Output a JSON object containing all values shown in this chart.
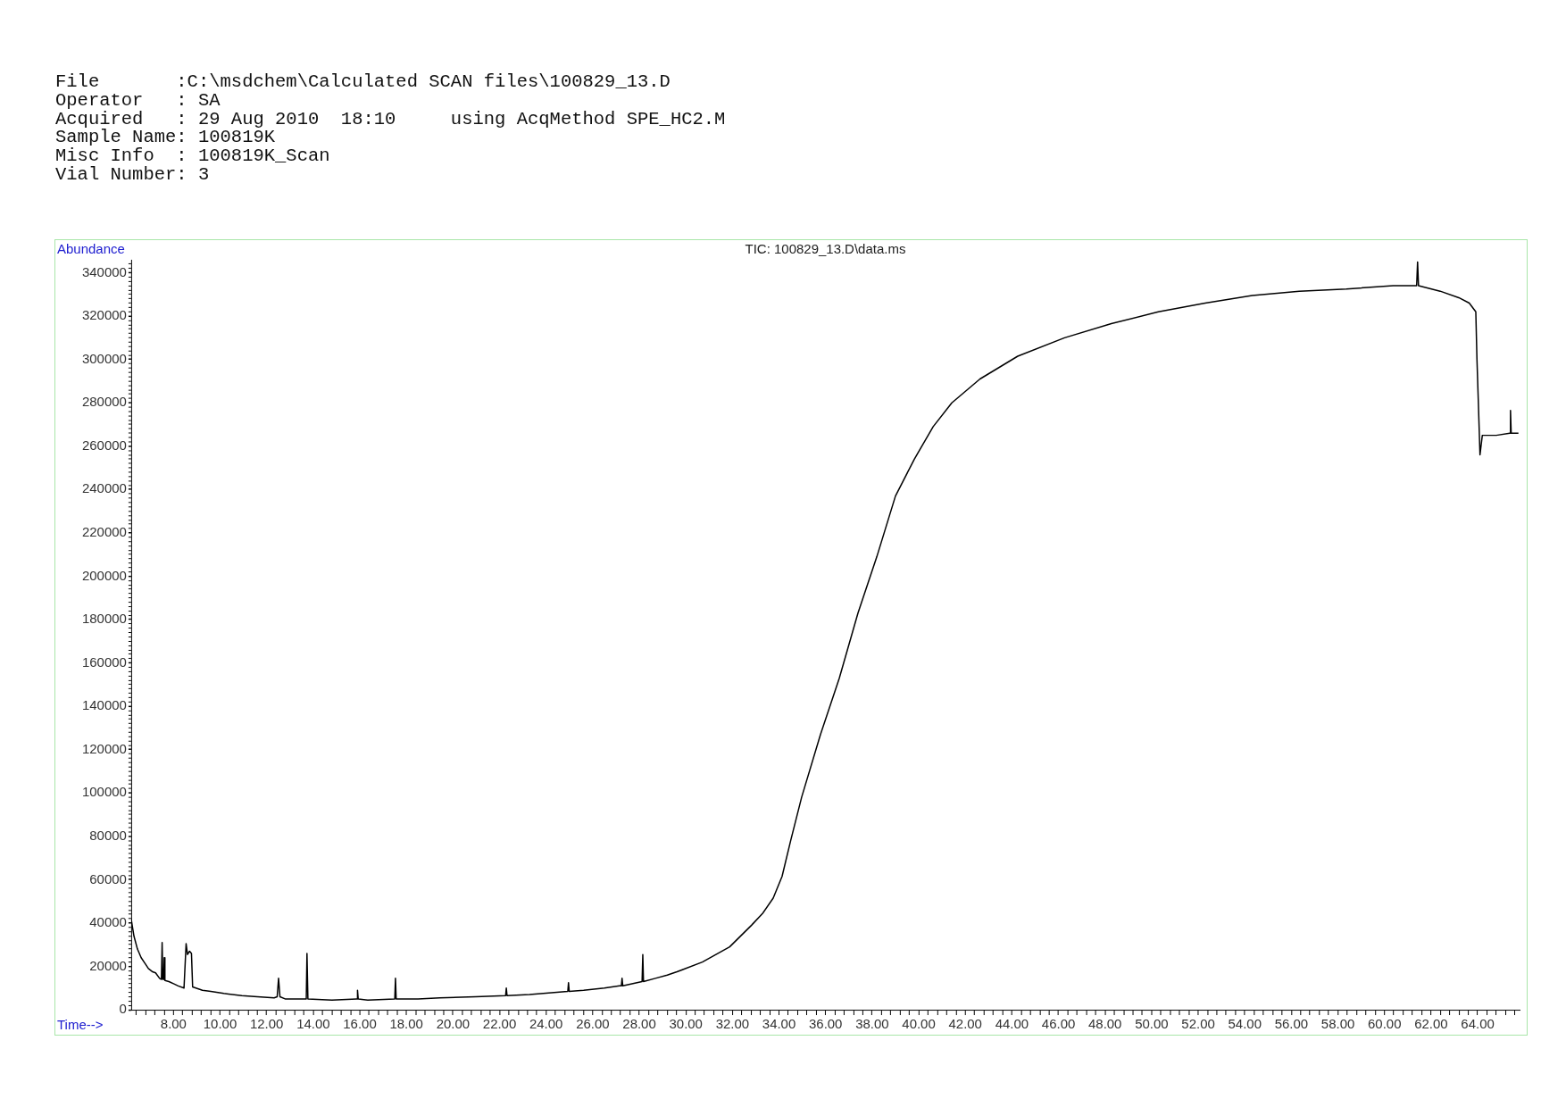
{
  "chart_data": {
    "type": "line",
    "title": "TIC: 100829_13.D\\data.ms",
    "xlabel": "Time-->",
    "ylabel": "Abundance",
    "annotations": [
      "File       :C:\\msdchem\\Calculated SCAN files\\100829_13.D",
      "Operator   : SA",
      "Acquired   : 29 Aug 2010  18:10     using AcqMethod SPE_HC2.M",
      "Sample Name: 100819K",
      "Misc Info  : 100819K_Scan",
      "Vial Number: 3"
    ],
    "x": [
      6.18,
      6.3,
      6.45,
      6.61,
      6.8,
      6.92,
      7.1,
      7.23,
      7.4,
      7.48,
      7.51,
      7.54,
      7.58,
      7.6,
      7.63,
      7.8,
      8.0,
      8.2,
      8.45,
      8.54,
      8.6,
      8.69,
      8.77,
      8.82,
      9.24,
      9.6,
      10.16,
      10.93,
      11.6,
      12.32,
      12.45,
      12.51,
      12.57,
      12.79,
      13.7,
      13.73,
      13.77,
      14.8,
      15.87,
      15.9,
      15.93,
      16.34,
      17.5,
      17.53,
      17.56,
      18.5,
      19.43,
      20.97,
      22.26,
      22.29,
      22.32,
      23.29,
      24.93,
      24.96,
      24.99,
      25.61,
      26.5,
      27.15,
      27.23,
      27.26,
      27.29,
      28.12,
      28.15,
      28.18,
      28.69,
      29.2,
      29.62,
      30.71,
      31.88,
      32.82,
      33.3,
      33.75,
      34.13,
      34.5,
      34.97,
      35.78,
      36.59,
      37.39,
      38.2,
      39.0,
      39.81,
      40.62,
      41.42,
      42.63,
      44.25,
      46.26,
      48.27,
      50.29,
      52.3,
      54.32,
      56.34,
      58.36,
      60.37,
      61.38,
      61.42,
      61.46,
      62.39,
      63.19,
      63.64,
      63.92,
      63.97,
      64.03,
      64.1,
      64.2,
      64.8,
      65.38,
      65.41,
      65.44,
      65.75
    ],
    "values": [
      42000,
      34000,
      28000,
      24000,
      21000,
      19000,
      17500,
      17000,
      14500,
      14000,
      31000,
      14000,
      14000,
      24000,
      13500,
      13000,
      12000,
      11000,
      10000,
      30500,
      25500,
      27000,
      26000,
      10500,
      9000,
      8500,
      7500,
      6500,
      6000,
      5500,
      6000,
      14500,
      6000,
      5000,
      5000,
      26000,
      5000,
      4500,
      5000,
      9000,
      5000,
      4500,
      5000,
      14500,
      5000,
      5000,
      5500,
      6000,
      6500,
      10000,
      6500,
      7000,
      8500,
      12500,
      8500,
      9000,
      10000,
      11000,
      11000,
      14500,
      11000,
      13000,
      25500,
      13000,
      14500,
      16000,
      17500,
      22000,
      29000,
      39000,
      44500,
      51500,
      61500,
      78000,
      98000,
      127000,
      153000,
      183000,
      209000,
      237000,
      254000,
      269000,
      280000,
      291000,
      301500,
      310000,
      316500,
      322000,
      326000,
      329500,
      331500,
      332500,
      334000,
      334000,
      345000,
      334000,
      331500,
      328500,
      326000,
      322000,
      300000,
      280000,
      256000,
      265000,
      265000,
      266000,
      276500,
      266000,
      266000
    ],
    "color": "#000000",
    "marker": "none",
    "legend": false,
    "xlim": [
      6.18,
      65.8
    ],
    "ylim": [
      0,
      346000
    ],
    "xticks": [
      {
        "value": 6.4,
        "label": null
      },
      {
        "value": 6.8,
        "label": null
      },
      {
        "value": 7.2,
        "label": null
      },
      {
        "value": 7.6,
        "label": null
      },
      {
        "value": 8,
        "label": "8.00"
      },
      {
        "value": 8.4,
        "label": null
      },
      {
        "value": 8.8,
        "label": null
      },
      {
        "value": 9.2,
        "label": null
      },
      {
        "value": 9.6,
        "label": null
      },
      {
        "value": 10,
        "label": "10.00"
      },
      {
        "value": 10.4,
        "label": null
      },
      {
        "value": 10.8,
        "label": null
      },
      {
        "value": 11.2,
        "label": null
      },
      {
        "value": 11.6,
        "label": null
      },
      {
        "value": 12,
        "label": "12.00"
      },
      {
        "value": 12.4,
        "label": null
      },
      {
        "value": 12.8,
        "label": null
      },
      {
        "value": 13.2,
        "label": null
      },
      {
        "value": 13.6,
        "label": null
      },
      {
        "value": 14,
        "label": "14.00"
      },
      {
        "value": 14.4,
        "label": null
      },
      {
        "value": 14.8,
        "label": null
      },
      {
        "value": 15.2,
        "label": null
      },
      {
        "value": 15.6,
        "label": null
      },
      {
        "value": 16,
        "label": "16.00"
      },
      {
        "value": 16.4,
        "label": null
      },
      {
        "value": 16.8,
        "label": null
      },
      {
        "value": 17.2,
        "label": null
      },
      {
        "value": 17.6,
        "label": null
      },
      {
        "value": 18,
        "label": "18.00"
      },
      {
        "value": 18.4,
        "label": null
      },
      {
        "value": 18.8,
        "label": null
      },
      {
        "value": 19.2,
        "label": null
      },
      {
        "value": 19.6,
        "label": null
      },
      {
        "value": 20,
        "label": "20.00"
      },
      {
        "value": 20.4,
        "label": null
      },
      {
        "value": 20.8,
        "label": null
      },
      {
        "value": 21.2,
        "label": null
      },
      {
        "value": 21.6,
        "label": null
      },
      {
        "value": 22,
        "label": "22.00"
      },
      {
        "value": 22.4,
        "label": null
      },
      {
        "value": 22.8,
        "label": null
      },
      {
        "value": 23.2,
        "label": null
      },
      {
        "value": 23.6,
        "label": null
      },
      {
        "value": 24,
        "label": "24.00"
      },
      {
        "value": 24.4,
        "label": null
      },
      {
        "value": 24.8,
        "label": null
      },
      {
        "value": 25.2,
        "label": null
      },
      {
        "value": 25.6,
        "label": null
      },
      {
        "value": 26,
        "label": "26.00"
      },
      {
        "value": 26.4,
        "label": null
      },
      {
        "value": 26.8,
        "label": null
      },
      {
        "value": 27.2,
        "label": null
      },
      {
        "value": 27.6,
        "label": null
      },
      {
        "value": 28,
        "label": "28.00"
      },
      {
        "value": 28.4,
        "label": null
      },
      {
        "value": 28.8,
        "label": null
      },
      {
        "value": 29.2,
        "label": null
      },
      {
        "value": 29.6,
        "label": null
      },
      {
        "value": 30,
        "label": "30.00"
      },
      {
        "value": 30.4,
        "label": null
      },
      {
        "value": 30.8,
        "label": null
      },
      {
        "value": 31.2,
        "label": null
      },
      {
        "value": 31.6,
        "label": null
      },
      {
        "value": 32,
        "label": "32.00"
      },
      {
        "value": 32.4,
        "label": null
      },
      {
        "value": 32.8,
        "label": null
      },
      {
        "value": 33.2,
        "label": null
      },
      {
        "value": 33.6,
        "label": null
      },
      {
        "value": 34,
        "label": "34.00"
      },
      {
        "value": 34.4,
        "label": null
      },
      {
        "value": 34.8,
        "label": null
      },
      {
        "value": 35.2,
        "label": null
      },
      {
        "value": 35.6,
        "label": null
      },
      {
        "value": 36,
        "label": "36.00"
      },
      {
        "value": 36.4,
        "label": null
      },
      {
        "value": 36.8,
        "label": null
      },
      {
        "value": 37.2,
        "label": null
      },
      {
        "value": 37.6,
        "label": null
      },
      {
        "value": 38,
        "label": "38.00"
      },
      {
        "value": 38.4,
        "label": null
      },
      {
        "value": 38.8,
        "label": null
      },
      {
        "value": 39.2,
        "label": null
      },
      {
        "value": 39.6,
        "label": null
      },
      {
        "value": 40,
        "label": "40.00"
      },
      {
        "value": 40.4,
        "label": null
      },
      {
        "value": 40.8,
        "label": null
      },
      {
        "value": 41.2,
        "label": null
      },
      {
        "value": 41.6,
        "label": null
      },
      {
        "value": 42,
        "label": "42.00"
      },
      {
        "value": 42.4,
        "label": null
      },
      {
        "value": 42.8,
        "label": null
      },
      {
        "value": 43.2,
        "label": null
      },
      {
        "value": 43.6,
        "label": null
      },
      {
        "value": 44,
        "label": "44.00"
      },
      {
        "value": 44.4,
        "label": null
      },
      {
        "value": 44.8,
        "label": null
      },
      {
        "value": 45.2,
        "label": null
      },
      {
        "value": 45.6,
        "label": null
      },
      {
        "value": 46,
        "label": "46.00"
      },
      {
        "value": 46.4,
        "label": null
      },
      {
        "value": 46.8,
        "label": null
      },
      {
        "value": 47.2,
        "label": null
      },
      {
        "value": 47.6,
        "label": null
      },
      {
        "value": 48,
        "label": "48.00"
      },
      {
        "value": 48.4,
        "label": null
      },
      {
        "value": 48.8,
        "label": null
      },
      {
        "value": 49.2,
        "label": null
      },
      {
        "value": 49.6,
        "label": null
      },
      {
        "value": 50,
        "label": "50.00"
      },
      {
        "value": 50.4,
        "label": null
      },
      {
        "value": 50.8,
        "label": null
      },
      {
        "value": 51.2,
        "label": null
      },
      {
        "value": 51.6,
        "label": null
      },
      {
        "value": 52,
        "label": "52.00"
      },
      {
        "value": 52.4,
        "label": null
      },
      {
        "value": 52.8,
        "label": null
      },
      {
        "value": 53.2,
        "label": null
      },
      {
        "value": 53.6,
        "label": null
      },
      {
        "value": 54,
        "label": "54.00"
      },
      {
        "value": 54.4,
        "label": null
      },
      {
        "value": 54.8,
        "label": null
      },
      {
        "value": 55.2,
        "label": null
      },
      {
        "value": 55.6,
        "label": null
      },
      {
        "value": 56,
        "label": "56.00"
      },
      {
        "value": 56.4,
        "label": null
      },
      {
        "value": 56.8,
        "label": null
      },
      {
        "value": 57.2,
        "label": null
      },
      {
        "value": 57.6,
        "label": null
      },
      {
        "value": 58,
        "label": "58.00"
      },
      {
        "value": 58.4,
        "label": null
      },
      {
        "value": 58.8,
        "label": null
      },
      {
        "value": 59.2,
        "label": null
      },
      {
        "value": 59.6,
        "label": null
      },
      {
        "value": 60,
        "label": "60.00"
      },
      {
        "value": 60.4,
        "label": null
      },
      {
        "value": 60.8,
        "label": null
      },
      {
        "value": 61.2,
        "label": null
      },
      {
        "value": 61.6,
        "label": null
      },
      {
        "value": 62,
        "label": "62.00"
      },
      {
        "value": 62.4,
        "label": null
      },
      {
        "value": 62.8,
        "label": null
      },
      {
        "value": 63.2,
        "label": null
      },
      {
        "value": 63.6,
        "label": null
      },
      {
        "value": 64,
        "label": "64.00"
      },
      {
        "value": 64.4,
        "label": null
      },
      {
        "value": 64.8,
        "label": null
      },
      {
        "value": 65.2,
        "label": null
      },
      {
        "value": 65.6,
        "label": null
      }
    ],
    "yticks": [
      0,
      {
        "value": 2000,
        "label": null
      },
      {
        "value": 4000,
        "label": null
      },
      {
        "value": 6000,
        "label": null
      },
      {
        "value": 8000,
        "label": null
      },
      {
        "value": 10000,
        "label": null
      },
      {
        "value": 12000,
        "label": null
      },
      {
        "value": 14000,
        "label": null
      },
      {
        "value": 16000,
        "label": null
      },
      {
        "value": 18000,
        "label": null
      },
      20000,
      {
        "value": 22000,
        "label": null
      },
      {
        "value": 24000,
        "label": null
      },
      {
        "value": 26000,
        "label": null
      },
      {
        "value": 28000,
        "label": null
      },
      {
        "value": 30000,
        "label": null
      },
      {
        "value": 32000,
        "label": null
      },
      {
        "value": 34000,
        "label": null
      },
      {
        "value": 36000,
        "label": null
      },
      {
        "value": 38000,
        "label": null
      },
      40000,
      {
        "value": 42000,
        "label": null
      },
      {
        "value": 44000,
        "label": null
      },
      {
        "value": 46000,
        "label": null
      },
      {
        "value": 48000,
        "label": null
      },
      {
        "value": 50000,
        "label": null
      },
      {
        "value": 52000,
        "label": null
      },
      {
        "value": 54000,
        "label": null
      },
      {
        "value": 56000,
        "label": null
      },
      {
        "value": 58000,
        "label": null
      },
      60000,
      {
        "value": 62000,
        "label": null
      },
      {
        "value": 64000,
        "label": null
      },
      {
        "value": 66000,
        "label": null
      },
      {
        "value": 68000,
        "label": null
      },
      {
        "value": 70000,
        "label": null
      },
      {
        "value": 72000,
        "label": null
      },
      {
        "value": 74000,
        "label": null
      },
      {
        "value": 76000,
        "label": null
      },
      {
        "value": 78000,
        "label": null
      },
      80000,
      {
        "value": 82000,
        "label": null
      },
      {
        "value": 84000,
        "label": null
      },
      {
        "value": 86000,
        "label": null
      },
      {
        "value": 88000,
        "label": null
      },
      {
        "value": 90000,
        "label": null
      },
      {
        "value": 92000,
        "label": null
      },
      {
        "value": 94000,
        "label": null
      },
      {
        "value": 96000,
        "label": null
      },
      {
        "value": 98000,
        "label": null
      },
      100000,
      {
        "value": 102000,
        "label": null
      },
      {
        "value": 104000,
        "label": null
      },
      {
        "value": 106000,
        "label": null
      },
      {
        "value": 108000,
        "label": null
      },
      {
        "value": 110000,
        "label": null
      },
      {
        "value": 112000,
        "label": null
      },
      {
        "value": 114000,
        "label": null
      },
      {
        "value": 116000,
        "label": null
      },
      {
        "value": 118000,
        "label": null
      },
      120000,
      {
        "value": 122000,
        "label": null
      },
      {
        "value": 124000,
        "label": null
      },
      {
        "value": 126000,
        "label": null
      },
      {
        "value": 128000,
        "label": null
      },
      {
        "value": 130000,
        "label": null
      },
      {
        "value": 132000,
        "label": null
      },
      {
        "value": 134000,
        "label": null
      },
      {
        "value": 136000,
        "label": null
      },
      {
        "value": 138000,
        "label": null
      },
      140000,
      {
        "value": 142000,
        "label": null
      },
      {
        "value": 144000,
        "label": null
      },
      {
        "value": 146000,
        "label": null
      },
      {
        "value": 148000,
        "label": null
      },
      {
        "value": 150000,
        "label": null
      },
      {
        "value": 152000,
        "label": null
      },
      {
        "value": 154000,
        "label": null
      },
      {
        "value": 156000,
        "label": null
      },
      {
        "value": 158000,
        "label": null
      },
      160000,
      {
        "value": 162000,
        "label": null
      },
      {
        "value": 164000,
        "label": null
      },
      {
        "value": 166000,
        "label": null
      },
      {
        "value": 168000,
        "label": null
      },
      {
        "value": 170000,
        "label": null
      },
      {
        "value": 172000,
        "label": null
      },
      {
        "value": 174000,
        "label": null
      },
      {
        "value": 176000,
        "label": null
      },
      {
        "value": 178000,
        "label": null
      },
      180000,
      {
        "value": 182000,
        "label": null
      },
      {
        "value": 184000,
        "label": null
      },
      {
        "value": 186000,
        "label": null
      },
      {
        "value": 188000,
        "label": null
      },
      {
        "value": 190000,
        "label": null
      },
      {
        "value": 192000,
        "label": null
      },
      {
        "value": 194000,
        "label": null
      },
      {
        "value": 196000,
        "label": null
      },
      {
        "value": 198000,
        "label": null
      },
      200000,
      {
        "value": 202000,
        "label": null
      },
      {
        "value": 204000,
        "label": null
      },
      {
        "value": 206000,
        "label": null
      },
      {
        "value": 208000,
        "label": null
      },
      {
        "value": 210000,
        "label": null
      },
      {
        "value": 212000,
        "label": null
      },
      {
        "value": 214000,
        "label": null
      },
      {
        "value": 216000,
        "label": null
      },
      {
        "value": 218000,
        "label": null
      },
      220000,
      {
        "value": 222000,
        "label": null
      },
      {
        "value": 224000,
        "label": null
      },
      {
        "value": 226000,
        "label": null
      },
      {
        "value": 228000,
        "label": null
      },
      {
        "value": 230000,
        "label": null
      },
      {
        "value": 232000,
        "label": null
      },
      {
        "value": 234000,
        "label": null
      },
      {
        "value": 236000,
        "label": null
      },
      {
        "value": 238000,
        "label": null
      },
      240000,
      {
        "value": 242000,
        "label": null
      },
      {
        "value": 244000,
        "label": null
      },
      {
        "value": 246000,
        "label": null
      },
      {
        "value": 248000,
        "label": null
      },
      {
        "value": 250000,
        "label": null
      },
      {
        "value": 252000,
        "label": null
      },
      {
        "value": 254000,
        "label": null
      },
      {
        "value": 256000,
        "label": null
      },
      {
        "value": 258000,
        "label": null
      },
      260000,
      {
        "value": 262000,
        "label": null
      },
      {
        "value": 264000,
        "label": null
      },
      {
        "value": 266000,
        "label": null
      },
      {
        "value": 268000,
        "label": null
      },
      {
        "value": 270000,
        "label": null
      },
      {
        "value": 272000,
        "label": null
      },
      {
        "value": 274000,
        "label": null
      },
      {
        "value": 276000,
        "label": null
      },
      {
        "value": 278000,
        "label": null
      },
      280000,
      {
        "value": 282000,
        "label": null
      },
      {
        "value": 284000,
        "label": null
      },
      {
        "value": 286000,
        "label": null
      },
      {
        "value": 288000,
        "label": null
      },
      {
        "value": 290000,
        "label": null
      },
      {
        "value": 292000,
        "label": null
      },
      {
        "value": 294000,
        "label": null
      },
      {
        "value": 296000,
        "label": null
      },
      {
        "value": 298000,
        "label": null
      },
      300000,
      {
        "value": 302000,
        "label": null
      },
      {
        "value": 304000,
        "label": null
      },
      {
        "value": 306000,
        "label": null
      },
      {
        "value": 308000,
        "label": null
      },
      {
        "value": 310000,
        "label": null
      },
      {
        "value": 312000,
        "label": null
      },
      {
        "value": 314000,
        "label": null
      },
      {
        "value": 316000,
        "label": null
      },
      {
        "value": 318000,
        "label": null
      },
      320000,
      {
        "value": 322000,
        "label": null
      },
      {
        "value": 324000,
        "label": null
      },
      {
        "value": 326000,
        "label": null
      },
      {
        "value": 328000,
        "label": null
      },
      {
        "value": 330000,
        "label": null
      },
      {
        "value": 332000,
        "label": null
      },
      {
        "value": 334000,
        "label": null
      },
      {
        "value": 336000,
        "label": null
      },
      {
        "value": 338000,
        "label": null
      },
      340000,
      {
        "value": 342000,
        "label": null
      },
      {
        "value": 344000,
        "label": null
      }
    ]
  }
}
